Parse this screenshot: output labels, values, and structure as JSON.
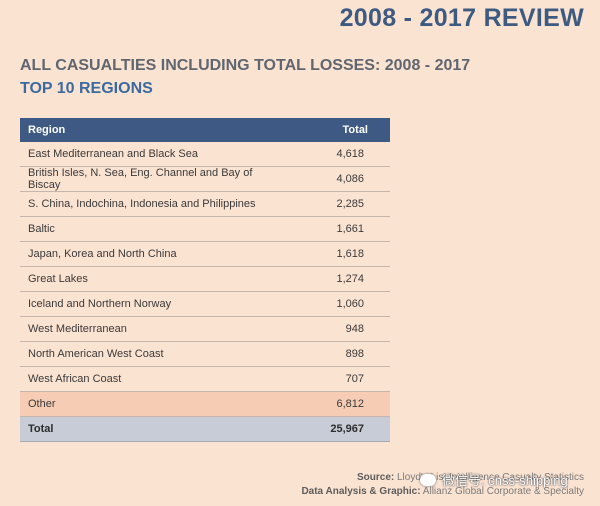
{
  "header": {
    "title": "2008 - 2017 REVIEW"
  },
  "headings": {
    "line1": "ALL CASUALTIES INCLUDING TOTAL LOSSES: 2008 - 2017",
    "line2": "TOP 10 REGIONS"
  },
  "table": {
    "columns": [
      "Region",
      "Total"
    ],
    "rows": [
      {
        "region": "East Mediterranean and Black Sea",
        "total": "4,618"
      },
      {
        "region": "British Isles, N. Sea, Eng. Channel and Bay of Biscay",
        "total": "4,086"
      },
      {
        "region": "S. China, Indochina, Indonesia and Philippines",
        "total": "2,285"
      },
      {
        "region": "Baltic",
        "total": "1,661"
      },
      {
        "region": "Japan, Korea and North China",
        "total": "1,618"
      },
      {
        "region": "Great Lakes",
        "total": "1,274"
      },
      {
        "region": "Iceland and Northern Norway",
        "total": "1,060"
      },
      {
        "region": "West Mediterranean",
        "total": "948"
      },
      {
        "region": "North American West Coast",
        "total": "898"
      },
      {
        "region": "West African Coast",
        "total": "707"
      },
      {
        "region": "Other",
        "total": "6,812"
      }
    ],
    "total": {
      "label": "Total",
      "value": "25,967"
    }
  },
  "source": {
    "source_label": "Source:",
    "source_text": "Lloyd's List Intelligence Casualty Statistics",
    "analysis_label": "Data Analysis & Graphic:",
    "analysis_text": "Allianz Global Corporate & Specialty"
  },
  "watermark": {
    "text": "微信号: cnss-shipping"
  }
}
